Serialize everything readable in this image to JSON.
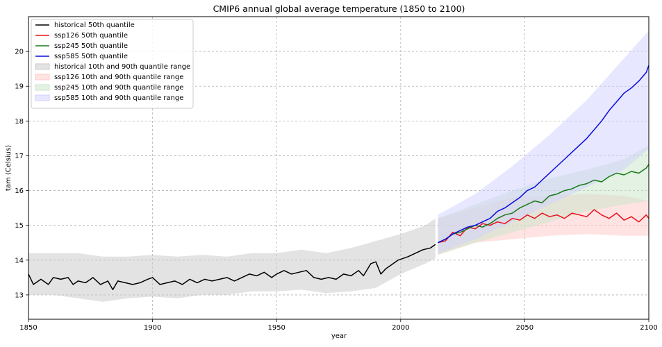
{
  "chart_data": {
    "type": "line",
    "title": "CMIP6 annual global average temperature (1850 to 2100)",
    "xlabel": "year",
    "ylabel": "tam (Celsius)",
    "xlim": [
      1850,
      2100
    ],
    "ylim": [
      12.3,
      21.0
    ],
    "xticks": [
      1850,
      1900,
      1950,
      2000,
      2050,
      2100
    ],
    "yticks": [
      13,
      14,
      15,
      16,
      17,
      18,
      19,
      20
    ],
    "grid": true,
    "legend_position": "top-left",
    "series": [
      {
        "name": "historical 50th quantile",
        "kind": "line",
        "color": "#000000",
        "points": [
          [
            1850,
            13.6
          ],
          [
            1852,
            13.3
          ],
          [
            1855,
            13.45
          ],
          [
            1858,
            13.3
          ],
          [
            1860,
            13.5
          ],
          [
            1863,
            13.45
          ],
          [
            1866,
            13.5
          ],
          [
            1868,
            13.3
          ],
          [
            1870,
            13.4
          ],
          [
            1873,
            13.35
          ],
          [
            1876,
            13.5
          ],
          [
            1879,
            13.3
          ],
          [
            1882,
            13.4
          ],
          [
            1884,
            13.15
          ],
          [
            1886,
            13.4
          ],
          [
            1889,
            13.35
          ],
          [
            1892,
            13.3
          ],
          [
            1895,
            13.35
          ],
          [
            1898,
            13.45
          ],
          [
            1900,
            13.5
          ],
          [
            1903,
            13.3
          ],
          [
            1906,
            13.35
          ],
          [
            1909,
            13.4
          ],
          [
            1912,
            13.3
          ],
          [
            1915,
            13.45
          ],
          [
            1918,
            13.35
          ],
          [
            1921,
            13.45
          ],
          [
            1924,
            13.4
          ],
          [
            1927,
            13.45
          ],
          [
            1930,
            13.5
          ],
          [
            1933,
            13.4
          ],
          [
            1936,
            13.5
          ],
          [
            1939,
            13.6
          ],
          [
            1942,
            13.55
          ],
          [
            1945,
            13.65
          ],
          [
            1948,
            13.5
          ],
          [
            1950,
            13.6
          ],
          [
            1953,
            13.7
          ],
          [
            1956,
            13.6
          ],
          [
            1959,
            13.65
          ],
          [
            1962,
            13.7
          ],
          [
            1965,
            13.5
          ],
          [
            1968,
            13.45
          ],
          [
            1971,
            13.5
          ],
          [
            1974,
            13.45
          ],
          [
            1977,
            13.6
          ],
          [
            1980,
            13.55
          ],
          [
            1983,
            13.7
          ],
          [
            1985,
            13.55
          ],
          [
            1988,
            13.9
          ],
          [
            1990,
            13.95
          ],
          [
            1992,
            13.6
          ],
          [
            1994,
            13.75
          ],
          [
            1997,
            13.9
          ],
          [
            1999,
            14.0
          ],
          [
            2001,
            14.05
          ],
          [
            2003,
            14.1
          ],
          [
            2006,
            14.2
          ],
          [
            2009,
            14.3
          ],
          [
            2012,
            14.35
          ],
          [
            2014,
            14.45
          ]
        ]
      },
      {
        "name": "ssp126 50th quantile",
        "kind": "line",
        "color": "#e8101a",
        "points": [
          [
            2015,
            14.5
          ],
          [
            2018,
            14.55
          ],
          [
            2021,
            14.8
          ],
          [
            2024,
            14.7
          ],
          [
            2027,
            14.95
          ],
          [
            2030,
            14.9
          ],
          [
            2033,
            15.05
          ],
          [
            2036,
            15.0
          ],
          [
            2039,
            15.1
          ],
          [
            2042,
            15.05
          ],
          [
            2045,
            15.2
          ],
          [
            2048,
            15.15
          ],
          [
            2051,
            15.3
          ],
          [
            2054,
            15.2
          ],
          [
            2057,
            15.35
          ],
          [
            2060,
            15.25
          ],
          [
            2063,
            15.3
          ],
          [
            2066,
            15.2
          ],
          [
            2069,
            15.35
          ],
          [
            2072,
            15.3
          ],
          [
            2075,
            15.25
          ],
          [
            2078,
            15.45
          ],
          [
            2081,
            15.3
          ],
          [
            2084,
            15.2
          ],
          [
            2087,
            15.35
          ],
          [
            2090,
            15.15
          ],
          [
            2093,
            15.25
          ],
          [
            2096,
            15.1
          ],
          [
            2099,
            15.3
          ],
          [
            2100,
            15.2
          ]
        ]
      },
      {
        "name": "ssp245 50th quantile",
        "kind": "line",
        "color": "#177a17",
        "points": [
          [
            2015,
            14.5
          ],
          [
            2018,
            14.6
          ],
          [
            2021,
            14.75
          ],
          [
            2024,
            14.8
          ],
          [
            2027,
            14.9
          ],
          [
            2030,
            15.0
          ],
          [
            2033,
            14.95
          ],
          [
            2036,
            15.05
          ],
          [
            2039,
            15.2
          ],
          [
            2042,
            15.3
          ],
          [
            2045,
            15.35
          ],
          [
            2048,
            15.5
          ],
          [
            2051,
            15.6
          ],
          [
            2054,
            15.7
          ],
          [
            2057,
            15.65
          ],
          [
            2060,
            15.85
          ],
          [
            2063,
            15.9
          ],
          [
            2066,
            16.0
          ],
          [
            2069,
            16.05
          ],
          [
            2072,
            16.15
          ],
          [
            2075,
            16.2
          ],
          [
            2078,
            16.3
          ],
          [
            2081,
            16.25
          ],
          [
            2084,
            16.4
          ],
          [
            2087,
            16.5
          ],
          [
            2090,
            16.45
          ],
          [
            2093,
            16.55
          ],
          [
            2096,
            16.5
          ],
          [
            2099,
            16.65
          ],
          [
            2100,
            16.75
          ]
        ]
      },
      {
        "name": "ssp585 50th quantile",
        "kind": "line",
        "color": "#0a0ae0",
        "points": [
          [
            2015,
            14.5
          ],
          [
            2018,
            14.6
          ],
          [
            2021,
            14.75
          ],
          [
            2024,
            14.85
          ],
          [
            2027,
            14.95
          ],
          [
            2030,
            15.0
          ],
          [
            2033,
            15.1
          ],
          [
            2036,
            15.2
          ],
          [
            2039,
            15.4
          ],
          [
            2042,
            15.5
          ],
          [
            2045,
            15.65
          ],
          [
            2048,
            15.8
          ],
          [
            2051,
            16.0
          ],
          [
            2054,
            16.1
          ],
          [
            2057,
            16.3
          ],
          [
            2060,
            16.5
          ],
          [
            2063,
            16.7
          ],
          [
            2066,
            16.9
          ],
          [
            2069,
            17.1
          ],
          [
            2072,
            17.3
          ],
          [
            2075,
            17.5
          ],
          [
            2078,
            17.75
          ],
          [
            2081,
            18.0
          ],
          [
            2084,
            18.3
          ],
          [
            2087,
            18.55
          ],
          [
            2090,
            18.8
          ],
          [
            2093,
            18.95
          ],
          [
            2096,
            19.15
          ],
          [
            2099,
            19.4
          ],
          [
            2100,
            19.6
          ]
        ]
      },
      {
        "name": "historical 10th and 90th quantile range",
        "kind": "band",
        "color": "#c8c8c8",
        "x": [
          1850,
          1860,
          1870,
          1880,
          1890,
          1900,
          1910,
          1920,
          1930,
          1940,
          1950,
          1960,
          1970,
          1980,
          1990,
          2000,
          2010,
          2014
        ],
        "low": [
          13.0,
          13.0,
          12.9,
          12.8,
          12.9,
          12.95,
          12.9,
          13.0,
          13.0,
          13.1,
          13.1,
          13.15,
          13.05,
          13.1,
          13.2,
          13.6,
          13.9,
          14.05
        ],
        "high": [
          14.2,
          14.2,
          14.2,
          14.1,
          14.1,
          14.15,
          14.1,
          14.15,
          14.1,
          14.2,
          14.2,
          14.3,
          14.2,
          14.35,
          14.55,
          14.75,
          15.0,
          15.2
        ]
      },
      {
        "name": "ssp126 10th and 90th quantile range",
        "kind": "band",
        "color": "#ffc8c8",
        "x": [
          2015,
          2030,
          2045,
          2060,
          2075,
          2090,
          2100
        ],
        "low": [
          14.15,
          14.5,
          14.6,
          14.7,
          14.75,
          14.7,
          14.7
        ],
        "high": [
          15.2,
          15.5,
          15.8,
          15.85,
          15.9,
          15.85,
          15.7
        ]
      },
      {
        "name": "ssp245 10th and 90th quantile range",
        "kind": "band",
        "color": "#c8e6c8",
        "x": [
          2015,
          2030,
          2045,
          2060,
          2075,
          2090,
          2100
        ],
        "low": [
          14.15,
          14.5,
          14.8,
          15.1,
          15.4,
          15.6,
          15.7
        ],
        "high": [
          15.2,
          15.6,
          16.0,
          16.35,
          16.6,
          16.9,
          17.3
        ]
      },
      {
        "name": "ssp585 10th and 90th quantile range",
        "kind": "band",
        "color": "#cfcfff",
        "x": [
          2015,
          2030,
          2045,
          2060,
          2075,
          2090,
          2100
        ],
        "low": [
          14.2,
          14.6,
          15.1,
          15.6,
          16.1,
          16.6,
          17.2
        ],
        "high": [
          15.3,
          15.9,
          16.7,
          17.6,
          18.6,
          19.8,
          20.6
        ]
      }
    ]
  }
}
